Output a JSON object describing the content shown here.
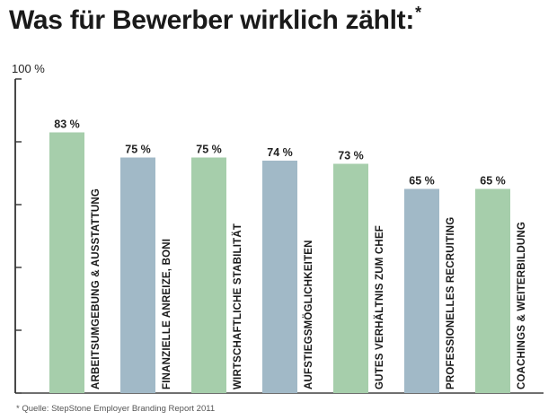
{
  "title": "Was für Bewerber wirklich zählt:",
  "title_mark": "*",
  "footnote": "* Quelle: StepStone Employer Branding Report 2011",
  "colors": {
    "green": "#a6ceab",
    "blue": "#a1b9c7",
    "axis": "#1a1a1a",
    "tick": "#333333"
  },
  "chart_data": {
    "type": "bar",
    "ylim": [
      0,
      100
    ],
    "y_top_label": "100 %",
    "categories": [
      "ARBEITSUMGEBUNG & AUSSTATTUNG",
      "FINANZIELLE ANREIZE, BONI",
      "WIRTSCHAFTLICHE STABILITÄT",
      "AUFSTIEGSMÖGLICHKEITEN",
      "GUTES VERHÄLTNIS ZUM CHEF",
      "PROFESSIONELLES RECRUITING",
      "COACHINGS & WEITERBILDUNG"
    ],
    "values": [
      83,
      75,
      75,
      74,
      73,
      65,
      65
    ],
    "value_labels": [
      "83 %",
      "75 %",
      "75 %",
      "74 %",
      "73 %",
      "65 %",
      "65 %"
    ],
    "bar_colors": [
      "green",
      "blue",
      "green",
      "blue",
      "green",
      "blue",
      "green"
    ],
    "grid": false,
    "legend": "none"
  }
}
